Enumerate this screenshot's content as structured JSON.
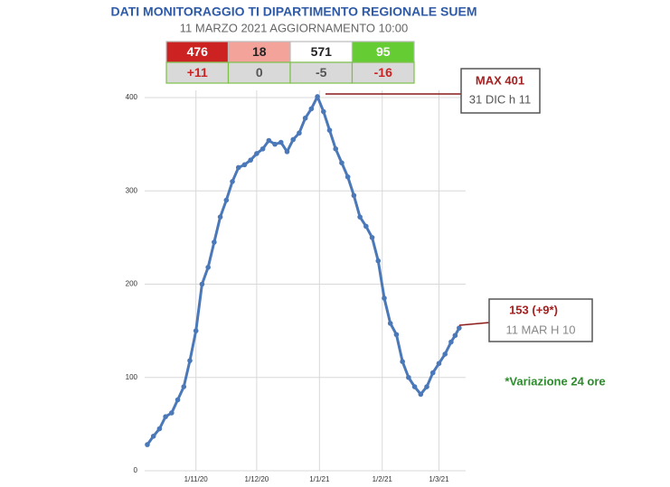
{
  "chart_data": {
    "type": "line",
    "title": "DATI MONITORAGGIO TI DIPARTIMENTO REGIONALE SUEM",
    "subtitle": "11 MARZO 2021 AGGIORNAMENTO 10:00",
    "x": [
      "2020-10-08",
      "2020-10-11",
      "2020-10-14",
      "2020-10-17",
      "2020-10-20",
      "2020-10-23",
      "2020-10-26",
      "2020-10-29",
      "2020-11-01",
      "2020-11-04",
      "2020-11-07",
      "2020-11-10",
      "2020-11-13",
      "2020-11-16",
      "2020-11-19",
      "2020-11-22",
      "2020-11-25",
      "2020-11-28",
      "2020-12-01",
      "2020-12-04",
      "2020-12-07",
      "2020-12-10",
      "2020-12-13",
      "2020-12-16",
      "2020-12-19",
      "2020-12-22",
      "2020-12-25",
      "2020-12-28",
      "2020-12-31",
      "2021-01-03",
      "2021-01-06",
      "2021-01-09",
      "2021-01-12",
      "2021-01-15",
      "2021-01-18",
      "2021-01-21",
      "2021-01-24",
      "2021-01-27",
      "2021-01-30",
      "2021-02-02",
      "2021-02-05",
      "2021-02-08",
      "2021-02-11",
      "2021-02-14",
      "2021-02-17",
      "2021-02-20",
      "2021-02-23",
      "2021-02-26",
      "2021-03-01",
      "2021-03-04",
      "2021-03-07",
      "2021-03-09",
      "2021-03-11"
    ],
    "series": [
      {
        "color": "#4a78b8",
        "values": [
          28,
          37,
          45,
          58,
          62,
          76,
          90,
          118,
          150,
          200,
          218,
          245,
          272,
          290,
          310,
          325,
          328,
          333,
          340,
          345,
          354,
          350,
          352,
          342,
          355,
          362,
          378,
          388,
          401,
          385,
          365,
          345,
          330,
          315,
          295,
          272,
          262,
          250,
          225,
          185,
          158,
          146,
          117,
          100,
          90,
          82,
          90,
          105,
          115,
          125,
          138,
          145,
          153
        ]
      }
    ],
    "xlim": [
      "2020-10-04",
      "2021-03-20"
    ],
    "xticks": [
      {
        "value": "2020-11-01",
        "label": "1/11/20"
      },
      {
        "value": "2020-12-01",
        "label": "1/12/20"
      },
      {
        "value": "2021-01-01",
        "label": "1/1/21"
      },
      {
        "value": "2021-02-01",
        "label": "1/2/21"
      },
      {
        "value": "2021-03-01",
        "label": "1/3/21"
      }
    ],
    "ylim": [
      0,
      400
    ],
    "yticks": [
      0,
      100,
      200,
      300,
      400
    ],
    "grid": true,
    "annotations": {
      "max_label": "MAX 401",
      "max_date": "31 DIC h 11",
      "last_label": "153 (+9*)",
      "last_date": "11 MAR H 10",
      "note": "*Variazione 24 ore"
    }
  },
  "summary_table": {
    "rows": [
      [
        476,
        18,
        571,
        95
      ],
      [
        "+11",
        "0",
        "-5",
        "-16"
      ]
    ],
    "fills": [
      "#cc2222",
      "#f4a39b",
      "#ffffff",
      "#66cc33"
    ]
  }
}
